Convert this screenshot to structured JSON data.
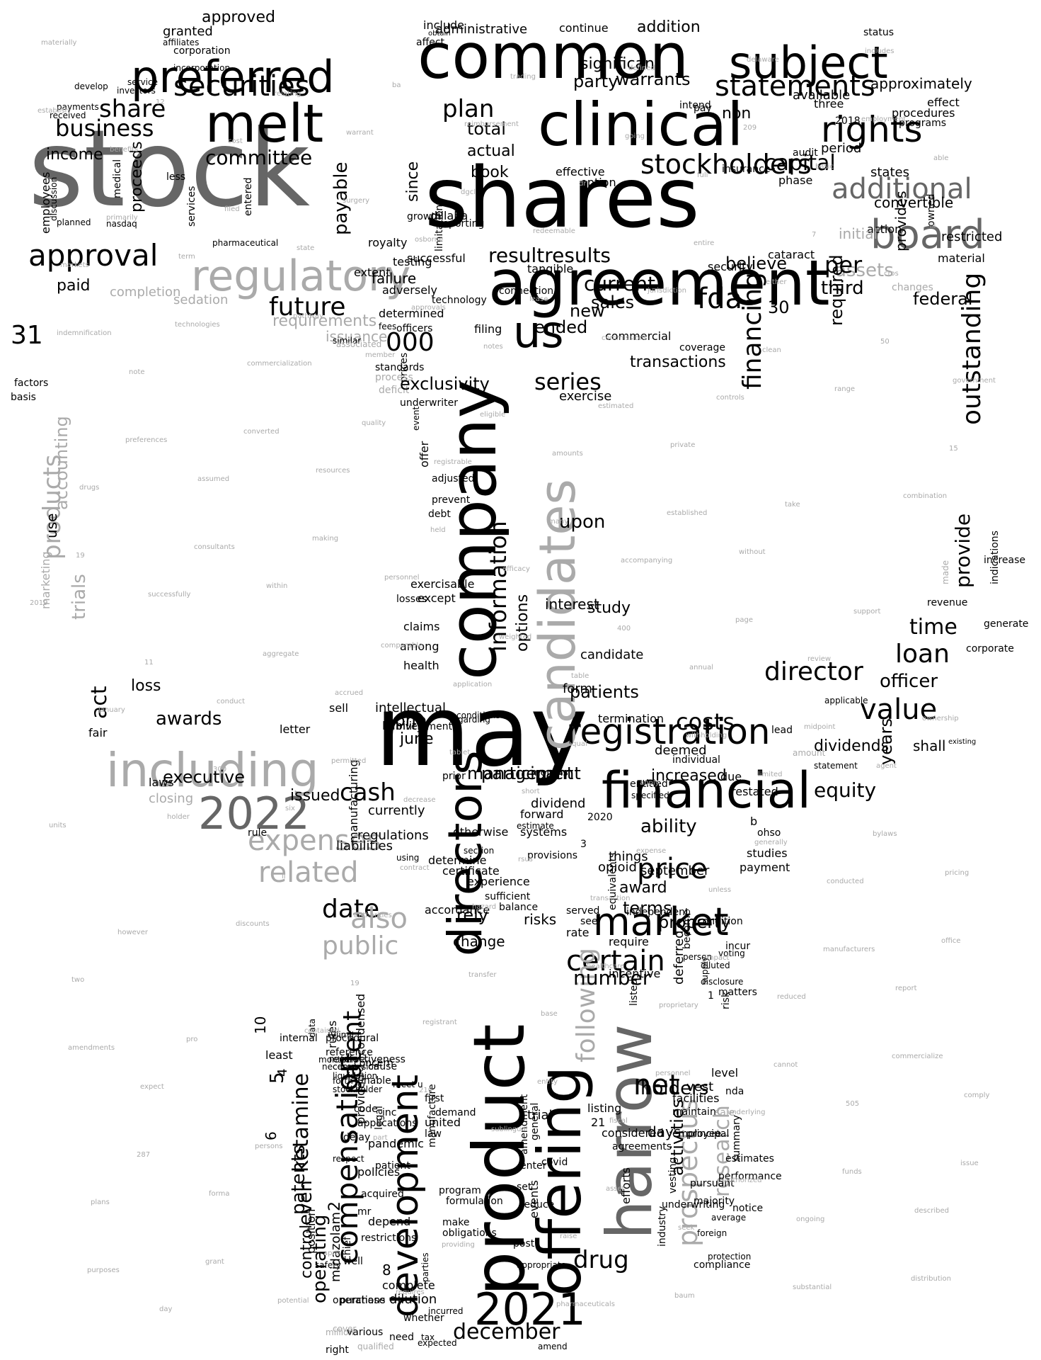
{
  "colors": {
    "background": "#ffffff",
    "primary": "#000000",
    "secondary": "#666666",
    "light": "#aaaaaa"
  },
  "words": [
    "stock",
    "shares",
    "company",
    "may",
    "clinical",
    "common",
    "product",
    "offering",
    "agreement",
    "melt",
    "preferred",
    "subject",
    "including",
    "financial",
    "regulatory",
    "board",
    "candidates",
    "directors",
    "harrow",
    "2022",
    "2021",
    "registration",
    "securities",
    "stockholders",
    "rights",
    "development",
    "us",
    "approval",
    "market",
    "expenses",
    "related",
    "additional",
    "statements",
    "price",
    "certain",
    "public",
    "following",
    "compensation",
    "business",
    "date",
    "share",
    "plan",
    "committee",
    "future",
    "value",
    "operating",
    "prospectus",
    "net",
    "holders",
    "december",
    "outstanding",
    "series",
    "information",
    "options",
    "financing",
    "director",
    "capital",
    "assets",
    "loan",
    "time",
    "officer",
    "drug",
    "research",
    "activities",
    "costs",
    "equity",
    "management",
    "cash",
    "fda",
    "000",
    "approved",
    "granted",
    "affiliates",
    "incorporation",
    "service",
    "investors",
    "develop",
    "payments",
    "received",
    "income",
    "employees",
    "discussion",
    "planned",
    "nasdaq",
    "medical",
    "proceeds",
    "less",
    "services",
    "pharmaceutical",
    "entered",
    "resultresults",
    "current",
    "new",
    "believe",
    "per",
    "third",
    "federal",
    "required",
    "paid",
    "31",
    "completion",
    "sedation",
    "requirements",
    "issuance",
    "30",
    "sales",
    "ended",
    "transactions",
    "exercise",
    "upon",
    "study",
    "one",
    "june",
    "awards",
    "loss",
    "act",
    "fair",
    "trials",
    "products",
    "accounting",
    "use",
    "marketing",
    "basis",
    "factors",
    "executive",
    "closing",
    "laws",
    "issued",
    "regulations",
    "currently",
    "liabilities",
    "accordance",
    "also",
    "change",
    "number",
    "terms",
    "property",
    "ability",
    "studies",
    "payment",
    "equivalents",
    "dividends",
    "years",
    "shall",
    "provide",
    "increase",
    "indications",
    "made",
    "revenue",
    "generate",
    "corporate",
    "existing",
    "extent",
    "prices",
    "underwriter",
    "connection",
    "filing",
    "officers",
    "determined",
    "adversely",
    "similar",
    "associated",
    "fees",
    "standards",
    "process",
    "deficit",
    "event",
    "offer",
    "adjusted",
    "prevent",
    "debt",
    "exercisable",
    "except",
    "losses",
    "claims",
    "among",
    "health",
    "sell",
    "letter",
    "regarding",
    "include",
    "affect",
    "obtain",
    "intellectual",
    "liability",
    "conditions",
    "administrative",
    "corporation",
    "status",
    "continue",
    "addition",
    "significant",
    "warrants",
    "party",
    "non",
    "available",
    "approximately",
    "procedures",
    "programs",
    "audit",
    "states",
    "convertible",
    "insurance",
    "phase",
    "action",
    "restricted",
    "initial",
    "changes",
    "owned",
    "material",
    "provides",
    "cataract",
    "security",
    "tangible",
    "commercial",
    "coverage",
    "intend",
    "pay",
    "three",
    "2018",
    "period",
    "effect",
    "total",
    "actual",
    "book",
    "effective",
    "option",
    "payable",
    "royalty",
    "failure",
    "testing",
    "successful",
    "since",
    "growth",
    "dillaha",
    "reporting",
    "limitations",
    "technology",
    "exclusivity",
    "participant",
    "interest",
    "candidate",
    "patients",
    "form",
    "deemed",
    "increased",
    "individual",
    "lead",
    "statement",
    "amount",
    "applicable",
    "manufacturing",
    "months",
    "prior",
    "rule",
    "investment",
    "termination",
    "b",
    "ohso",
    "due",
    "restated",
    "specified",
    "entitled",
    "2020",
    "3",
    "dividend",
    "forward",
    "estimate",
    "systems",
    "provisions",
    "september",
    "things",
    "opioid",
    "award",
    "experience",
    "certificate",
    "section",
    "otherwise",
    "determine",
    "using",
    "rely",
    "sufficient",
    "balance",
    "risks",
    "served",
    "see",
    "require",
    "rate",
    "independent",
    "condition",
    "become",
    "person",
    "diluted",
    "voting",
    "incur",
    "deferred",
    "supply",
    "disclosure",
    "matters",
    "risk",
    "incentive",
    "level",
    "vest",
    "facilities",
    "maintain",
    "listing",
    "21",
    "trial",
    "considered",
    "agreements",
    "days",
    "employee",
    "principal",
    "sale",
    "pursuant",
    "vesting",
    "performance",
    "summary",
    "estimates",
    "nda",
    "listed",
    "efforts",
    "underwriting",
    "foreign",
    "majority",
    "notice",
    "average",
    "protection",
    "compliance",
    "industry",
    "events",
    "reduce",
    "post",
    "set",
    "enter",
    "appropriate",
    "incurred",
    "whether",
    "expected",
    "tax",
    "amend",
    "need",
    "cover",
    "various",
    "qualified",
    "right",
    "million",
    "purchase",
    "safety",
    "position",
    "well",
    "chief",
    "restrictions",
    "obligations",
    "make",
    "parties",
    "program",
    "formulation",
    "manufacture",
    "law",
    "united",
    "demand",
    "legal",
    "first",
    "meet",
    "cause",
    "month",
    "condensed",
    "concern",
    "unable",
    "forth",
    "conversion",
    "reference",
    "effectiveness",
    "necessary",
    "data",
    "iv",
    "receive",
    "liquidation",
    "stockholder",
    "provided",
    "inc",
    "general",
    "amendment",
    "covid",
    "8",
    "complete",
    "dilution",
    "even",
    "patents",
    "rules",
    "procedural",
    "limit",
    "least",
    "internal",
    "ketamine",
    "patent",
    "control",
    "operations",
    "midazolam",
    "2",
    "10",
    "5",
    "4",
    "6",
    "1",
    "u",
    "mr",
    "depend",
    "policies",
    "acquired",
    "pandemic",
    "patient",
    "applications",
    "code",
    "respect",
    "delay",
    "requires",
    "reimbursement",
    "redeemable",
    "commissions",
    "private",
    "without",
    "review",
    "agent",
    "pricing",
    "two",
    "expect",
    "forma",
    "potential",
    "warrant",
    "osborne",
    "notes",
    "amounts",
    "accompanying",
    "annual",
    "limited",
    "conducted",
    "report",
    "comply",
    "plans",
    "day",
    "cost",
    "state",
    "member",
    "registrable",
    "efficacy",
    "table",
    "apply",
    "unless",
    "reduced",
    "505",
    "described",
    "materially",
    "benefits",
    "term",
    "commercialization",
    "resources",
    "personnel",
    "application",
    "short",
    "transaction",
    "proprietary",
    "underlying",
    "ongoing",
    "includes",
    "able",
    "markets",
    "note",
    "assumed",
    "within",
    "accrued",
    "decrease",
    "hazard",
    "base",
    "fiscal",
    "seek",
    "delaware",
    "basic",
    "cros",
    "government",
    "drugs",
    "successfully",
    "conduct",
    "six",
    "authorities",
    "registrant",
    "sublingual",
    "raise",
    "defined",
    "full",
    "either",
    "range",
    "combination",
    "2019",
    "january",
    "holder",
    "discounts",
    "contained",
    "part",
    "providing",
    "trading",
    "dr",
    "jurisdiction",
    "controls",
    "take",
    "support",
    "ownership",
    "units",
    "however",
    "pro",
    "persons",
    "april",
    "ba",
    "dgcl",
    "lease",
    "estimated",
    "established",
    "page",
    "midpoint",
    "bylaws",
    "office",
    "amendments",
    "287",
    "grant",
    "relating",
    "surgery",
    "approvals",
    "eligible",
    "many",
    "400",
    "withholding",
    "generally",
    "manufacturers",
    "commercialize",
    "issue",
    "purposes",
    "12",
    "filed",
    "pathway",
    "quality",
    "held",
    "weighted",
    "equal",
    "expense",
    "impact",
    "cannot",
    "funds",
    "distribution",
    "establish",
    "primarily",
    "technologies",
    "converted",
    "making",
    "comparable",
    "tablet",
    "rsus",
    "healthcare",
    "personnel",
    "authorized",
    "substantial",
    "employment",
    "iii",
    "indemnification",
    "preferences",
    "consultants",
    "aggregate",
    "permitted",
    "contract",
    "transfer",
    "entity",
    "asset",
    "baum",
    "209",
    "7",
    "50",
    "15",
    "19",
    "11",
    "300",
    "ii",
    "19",
    "210",
    "f",
    "pharmaceuticals",
    "going",
    "entire",
    "clean"
  ]
}
